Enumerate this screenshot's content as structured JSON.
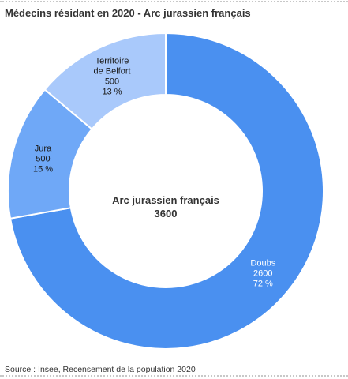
{
  "chart_data": {
    "type": "pie",
    "style": "donut",
    "title": "Médecins résidant en 2020 - Arc jurassien français",
    "center_label": "Arc jurassien français",
    "center_value": "3600",
    "source": "Source : Insee, Recensement de la population 2020",
    "slices": [
      {
        "name": "Doubs",
        "value": 2600,
        "value_text": "2600",
        "percent_text": "72 %",
        "color": "#4a90f0",
        "label_color": "#ffffff"
      },
      {
        "name": "Jura",
        "value": 500,
        "value_text": "500",
        "percent_text": "15 %",
        "color": "#6fa8f7",
        "label_color": "#1a1a1a"
      },
      {
        "name": "Territoire de Belfort",
        "name_lines": [
          "Territoire",
          "de Belfort"
        ],
        "value": 500,
        "value_text": "500",
        "percent_text": "13 %",
        "color": "#a9c9fb",
        "label_color": "#1a1a1a"
      }
    ]
  }
}
